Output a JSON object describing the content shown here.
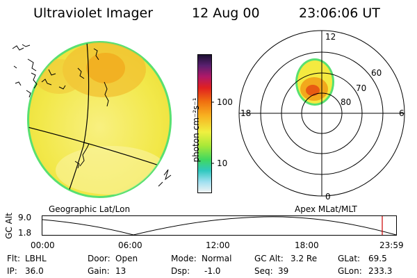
{
  "header": {
    "instrument": "Ultraviolet Imager",
    "date": "12 Aug 00",
    "time": "23:06:06 UT"
  },
  "colorbar": {
    "label": "photon cm⁻²s⁻¹",
    "ticks": [
      "100",
      "10"
    ]
  },
  "left_panel": {
    "caption": "Geographic Lat/Lon"
  },
  "polar": {
    "caption": "Apex MLat/MLT",
    "mlt_labels": {
      "top": "12",
      "left": "18",
      "right": "6",
      "bottom": "0"
    },
    "lat_labels": [
      "60",
      "70",
      "80"
    ]
  },
  "altitude": {
    "ylabel": "GC Alt",
    "yticks": [
      "9.0",
      "1.8"
    ],
    "xticks": [
      "00:00",
      "06:00",
      "12:00",
      "18:00",
      "23:59"
    ]
  },
  "footer": {
    "flt_label": "Flt:",
    "flt_value": "LBHL",
    "ip_label": "IP:",
    "ip_value": "36.0",
    "door_label": "Door:",
    "door_value": "Open",
    "gain_label": "Gain:",
    "gain_value": "13",
    "mode_label": "Mode:",
    "mode_value": "Normal",
    "dsp_label": "Dsp:",
    "dsp_value": "-1.0",
    "gcalt_label": "GC Alt:",
    "gcalt_value": "3.2 Re",
    "seq_label": "Seq:",
    "seq_value": "39",
    "glat_label": "GLat:",
    "glat_value": "69.5",
    "glon_label": "GLon:",
    "glon_value": "233.3"
  },
  "colors": {
    "disk_fill": "#f4ea40",
    "disk_edge": "#58e070",
    "aurora_orange": "#f2a81c",
    "aurora_red": "#e85a12",
    "orbit_marker": "#cc0000"
  }
}
